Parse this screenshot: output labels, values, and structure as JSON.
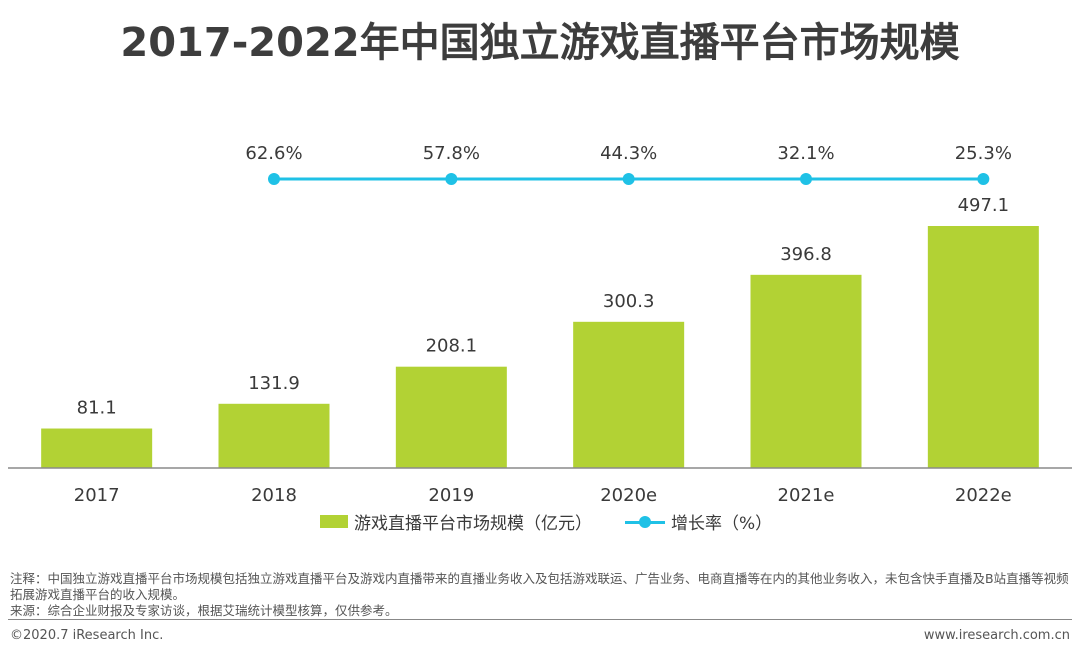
{
  "title": "2017-2022年中国独立游戏直播平台市场规模",
  "colors": {
    "bar": "#b2d234",
    "line": "#1fc1e6",
    "axis": "#8a8a8a",
    "text": "#3a3a3a"
  },
  "chart_data": {
    "type": "bar+line",
    "categories": [
      "2017",
      "2018",
      "2019",
      "2020e",
      "2021e",
      "2022e"
    ],
    "series": [
      {
        "name": "游戏直播平台市场规模（亿元）",
        "type": "bar",
        "values": [
          81.1,
          131.9,
          208.1,
          300.3,
          396.8,
          497.1
        ],
        "labels": [
          "81.1",
          "131.9",
          "208.1",
          "300.3",
          "396.8",
          "497.1"
        ]
      },
      {
        "name": "增长率（%）",
        "type": "line",
        "values": [
          null,
          62.6,
          57.8,
          44.3,
          32.1,
          25.3
        ],
        "labels": [
          "",
          "62.6%",
          "57.8%",
          "44.3%",
          "32.1%",
          "25.3%"
        ]
      }
    ],
    "ylim": [
      0,
      500
    ],
    "grid": false,
    "legend_position": "bottom"
  },
  "legend": {
    "bar_label": "游戏直播平台市场规模（亿元）",
    "line_label": "增长率（%）"
  },
  "note": "注释：中国独立游戏直播平台市场规模包括独立游戏直播平台及游戏内直播带来的直播业务收入及包括游戏联运、广告业务、电商直播等在内的其他业务收入，未包含快手直播及B站直播等视频拓展游戏直播平台的收入规模。",
  "source": "来源：综合企业财报及专家访谈，根据艾瑞统计模型核算，仅供参考。",
  "footer": {
    "copyright": "©2020.7 iResearch Inc.",
    "website": "www.iresearch.com.cn"
  }
}
